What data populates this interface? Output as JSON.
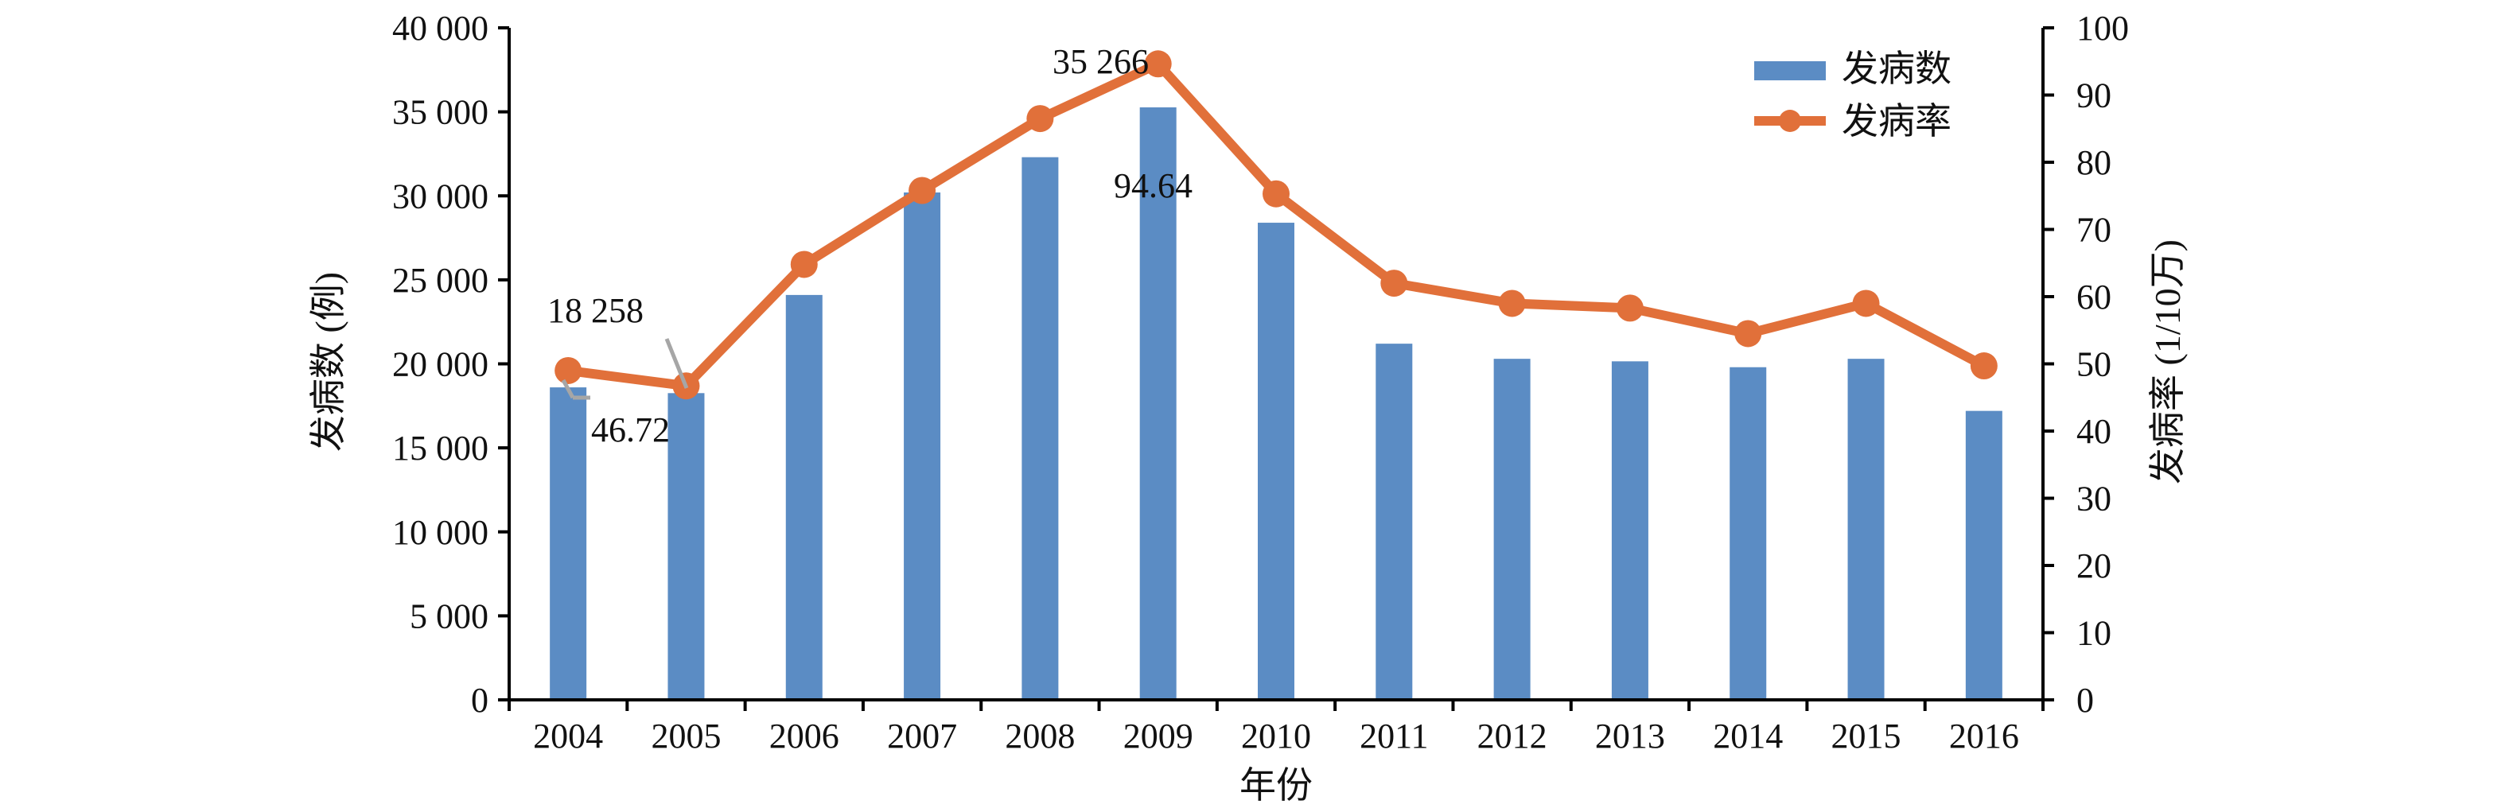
{
  "chart_data": {
    "type": "bar",
    "title": "",
    "categories": [
      "2004",
      "2005",
      "2006",
      "2007",
      "2008",
      "2009",
      "2010",
      "2011",
      "2012",
      "2013",
      "2014",
      "2015",
      "2016"
    ],
    "series": [
      {
        "name": "发病数",
        "type": "bar",
        "axis": "left",
        "color": "#5b8cc4",
        "values": [
          18600,
          18258,
          24100,
          30200,
          32300,
          35266,
          28400,
          21200,
          20300,
          20150,
          19800,
          20300,
          17200
        ]
      },
      {
        "name": "发病率",
        "type": "line",
        "axis": "right",
        "color": "#e1703a",
        "values": [
          49.0,
          46.72,
          64.8,
          75.8,
          86.5,
          94.64,
          75.3,
          62.0,
          59.0,
          58.3,
          54.5,
          59.0,
          49.7
        ]
      }
    ],
    "xlabel": "年份",
    "ylabel_left": "发病数 (例)",
    "ylabel_right": "发病率 (1/10万)",
    "ylim_left": [
      0,
      40000
    ],
    "ylim_right": [
      0,
      100
    ],
    "yticks_left": [
      "0",
      "5 000",
      "10 000",
      "15 000",
      "20 000",
      "25 000",
      "30 000",
      "35 000",
      "40 000"
    ],
    "yticks_right": [
      "0",
      "10",
      "20",
      "30",
      "40",
      "50",
      "60",
      "70",
      "80",
      "90",
      "100"
    ],
    "legend_placement": "top-right",
    "grid": false,
    "annotations": [
      {
        "text": "18 258"
      },
      {
        "text": "46.72"
      },
      {
        "text": "35 266"
      },
      {
        "text": "94.64"
      }
    ]
  }
}
